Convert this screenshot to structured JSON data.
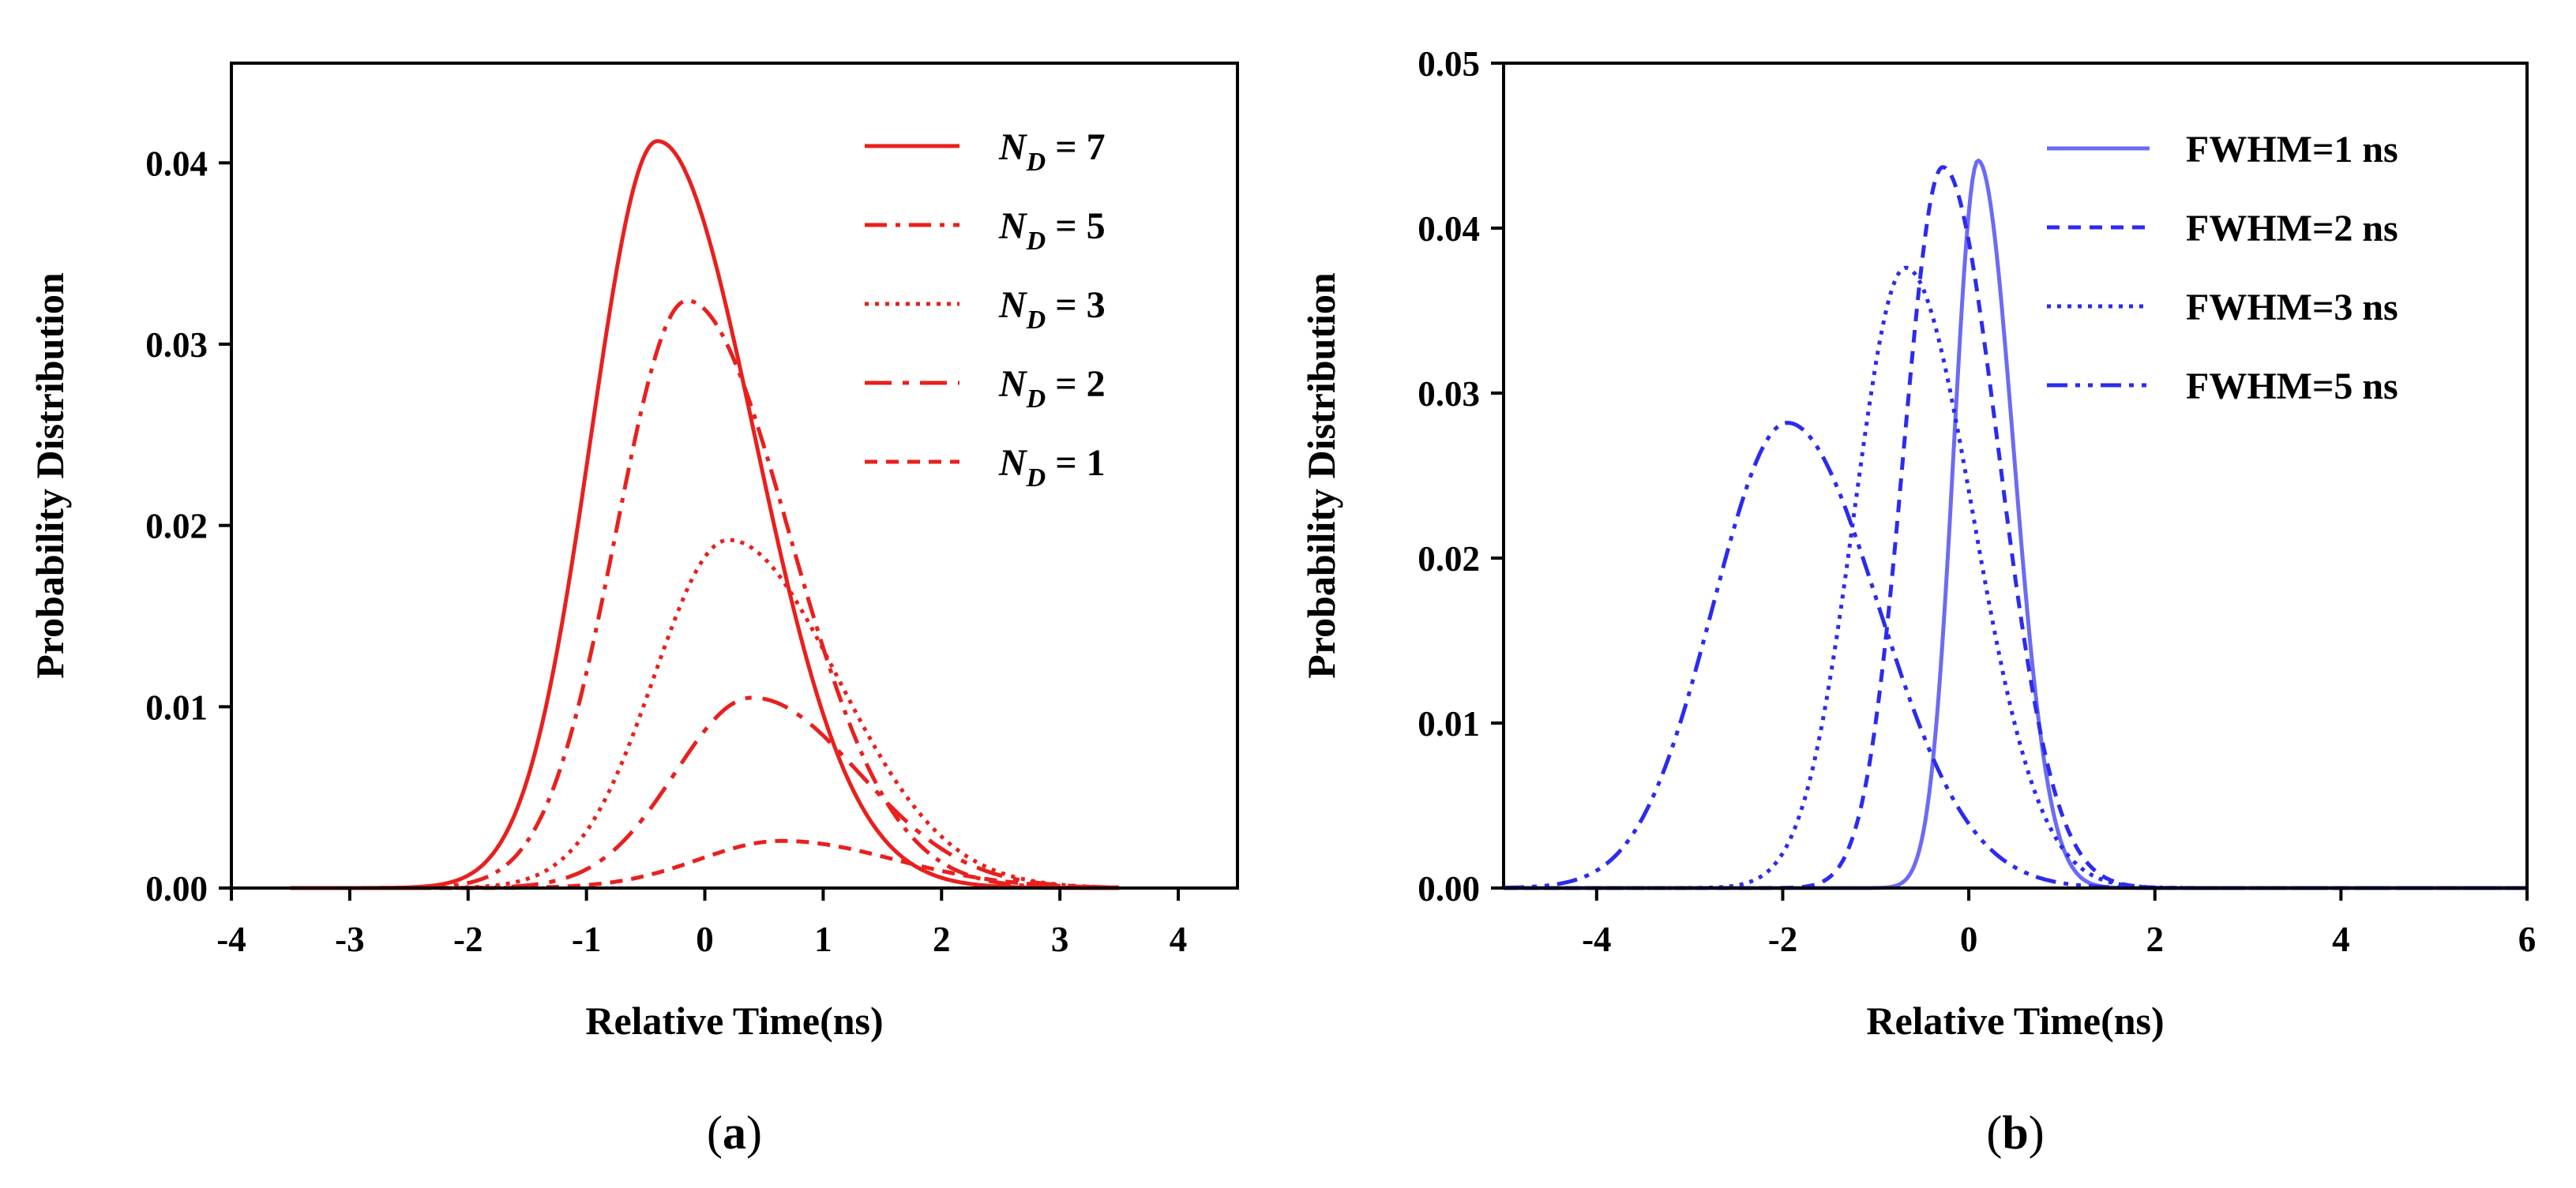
{
  "chart_data": [
    {
      "type": "line",
      "panel_label": {
        "open": "(",
        "letter": "a",
        "close": ")"
      },
      "title": "",
      "xlabel": "Relative Time(ns)",
      "ylabel": "Probability Distribution",
      "xlim": [
        -4,
        4.5
      ],
      "ylim": [
        0,
        0.0455
      ],
      "xticks": [
        -4,
        -3,
        -2,
        -1,
        0,
        1,
        2,
        3,
        4
      ],
      "xtick_labels": [
        "-4",
        "-3",
        "-2",
        "-1",
        "0",
        "1",
        "2",
        "3",
        "4"
      ],
      "yticks": [
        0,
        0.01,
        0.02,
        0.03,
        0.04
      ],
      "ytick_labels": [
        "0.00",
        "0.01",
        "0.02",
        "0.03",
        "0.04"
      ],
      "grid": false,
      "legend_position": "top-right",
      "color": "#e8201e",
      "x_range": [
        -3.5,
        3.5
      ],
      "series": [
        {
          "name": "N_D = 7",
          "legend_main": "N",
          "legend_sub": "D",
          "legend_rest": " = 7",
          "dash": "solid",
          "peak": 0.0412,
          "center": -0.4,
          "sigma_left": 0.56,
          "sigma_right": 0.82
        },
        {
          "name": "N_D = 5",
          "legend_main": "N",
          "legend_sub": "D",
          "legend_rest": " = 5",
          "dash": "dashdot",
          "peak": 0.0324,
          "center": -0.15,
          "sigma_left": 0.6,
          "sigma_right": 0.86
        },
        {
          "name": "N_D = 3",
          "legend_main": "N",
          "legend_sub": "D",
          "legend_rest": " = 3",
          "dash": "dot",
          "peak": 0.0192,
          "center": 0.2,
          "sigma_left": 0.63,
          "sigma_right": 0.92
        },
        {
          "name": "N_D = 2",
          "legend_main": "N",
          "legend_sub": "D",
          "legend_rest": " = 2",
          "dash": "dashdot2",
          "peak": 0.0105,
          "center": 0.4,
          "sigma_left": 0.65,
          "sigma_right": 0.9
        },
        {
          "name": "N_D = 1",
          "legend_main": "N",
          "legend_sub": "D",
          "legend_rest": " = 1",
          "dash": "dash",
          "peak": 0.0026,
          "center": 0.65,
          "sigma_left": 0.7,
          "sigma_right": 0.95
        }
      ]
    },
    {
      "type": "line",
      "panel_label": {
        "open": "(",
        "letter": "b",
        "close": ")"
      },
      "title": "",
      "xlabel": "Relative Time(ns)",
      "ylabel": "Probability Distribution",
      "xlim": [
        -5,
        6
      ],
      "ylim": [
        0,
        0.05
      ],
      "xticks": [
        -4,
        -2,
        0,
        2,
        4,
        6
      ],
      "xtick_labels": [
        "-4",
        "-2",
        "0",
        "2",
        "4",
        "6"
      ],
      "yticks": [
        0,
        0.01,
        0.02,
        0.03,
        0.04,
        0.05
      ],
      "ytick_labels": [
        "0.00",
        "0.01",
        "0.02",
        "0.03",
        "0.04",
        "0.05"
      ],
      "grid": false,
      "legend_position": "top-right",
      "color": "#2b2bf0",
      "x_range": [
        -5,
        6
      ],
      "series": [
        {
          "name": "FWHM=1 ns",
          "dash": "solid",
          "color": "#6b6bf5",
          "peak": 0.0441,
          "center": 0.1,
          "sigma_left": 0.26,
          "sigma_right": 0.38
        },
        {
          "name": "FWHM=2 ns",
          "dash": "dash",
          "color": "#2b2bf0",
          "peak": 0.0437,
          "center": -0.28,
          "sigma_left": 0.42,
          "sigma_right": 0.6
        },
        {
          "name": "FWHM=3 ns",
          "dash": "dot",
          "color": "#2b2bf0",
          "peak": 0.0376,
          "center": -0.68,
          "sigma_left": 0.55,
          "sigma_right": 0.72
        },
        {
          "name": "FWHM=5 ns",
          "dash": "dashdotdot",
          "color": "#2b2bf0",
          "peak": 0.0282,
          "center": -1.95,
          "sigma_left": 0.8,
          "sigma_right": 0.98
        }
      ]
    }
  ]
}
